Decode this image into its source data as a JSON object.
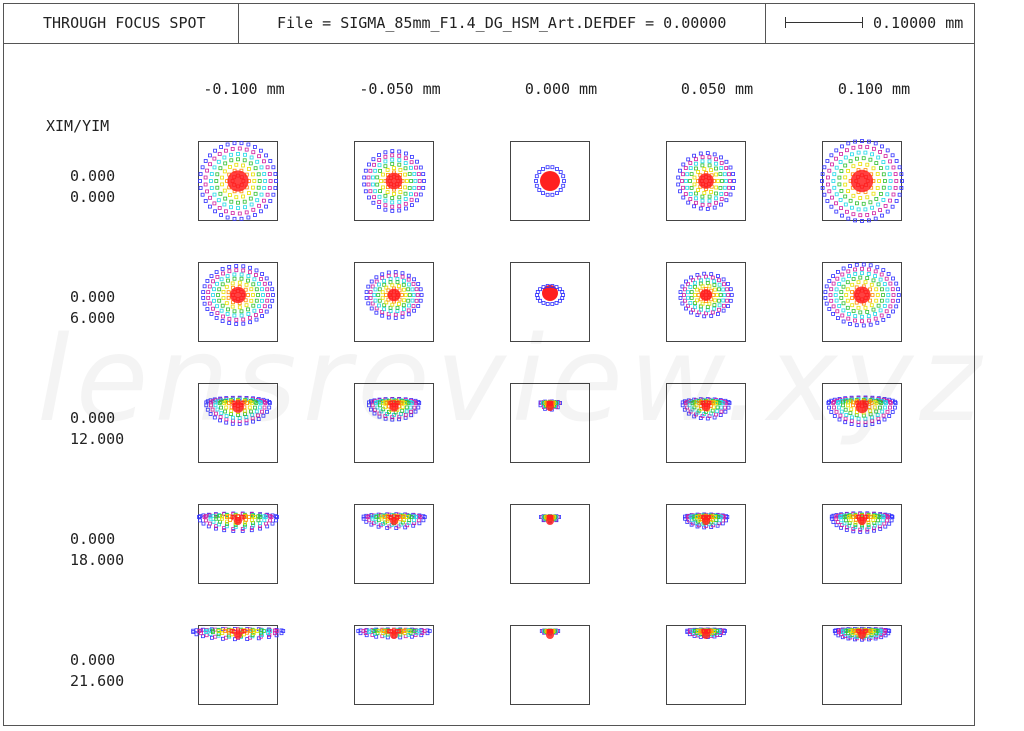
{
  "header": {
    "title": "THROUGH FOCUS SPOT",
    "file": "File = SIGMA_85mm_F1.4_DG_HSM_Art.DEF",
    "defocus": "DEF = 0.00000",
    "scale": "0.10000 mm"
  },
  "columns": [
    "-0.100 mm",
    "-0.050 mm",
    "0.000 mm",
    "0.050 mm",
    "0.100 mm"
  ],
  "field_header": "XIM/YIM",
  "rows": [
    {
      "xim": "0.000",
      "yim": "0.000"
    },
    {
      "xim": "0.000",
      "yim": "6.000"
    },
    {
      "xim": "0.000",
      "yim": "12.000"
    },
    {
      "xim": "0.000",
      "yim": "18.000"
    },
    {
      "xim": "0.000",
      "yim": "21.600"
    }
  ],
  "watermark": "lensreview.xyz",
  "colors": {
    "core": "#ff2020",
    "inner": "#ff8c00",
    "mid": "#e8e000",
    "green": "#30c030",
    "cyan": "#20d8e8",
    "outer": "#3030ff",
    "magenta": "#d020a0"
  }
}
